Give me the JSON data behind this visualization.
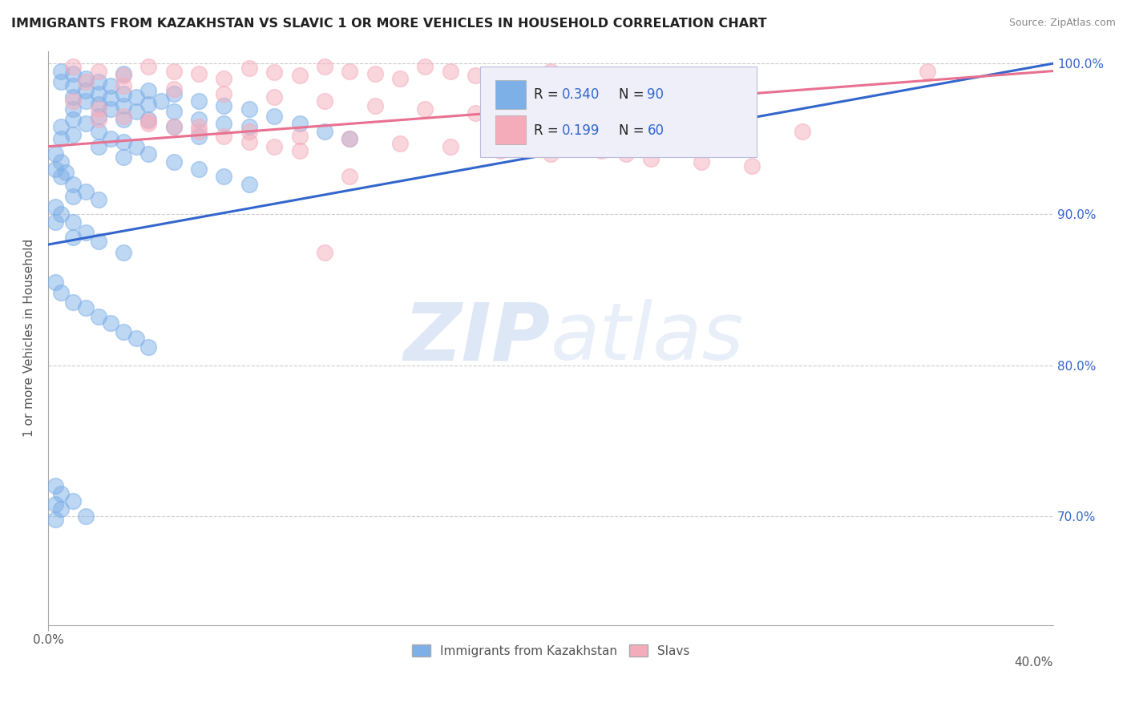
{
  "title": "IMMIGRANTS FROM KAZAKHSTAN VS SLAVIC 1 OR MORE VEHICLES IN HOUSEHOLD CORRELATION CHART",
  "source": "Source: ZipAtlas.com",
  "ylabel": "1 or more Vehicles in Household",
  "xlim": [
    0.0,
    0.04
  ],
  "ylim": [
    0.628,
    1.008
  ],
  "xtick_vals": [
    0.0,
    0.005,
    0.01,
    0.015,
    0.02,
    0.025,
    0.03,
    0.035,
    0.04
  ],
  "xtick_labels": [
    "0.0%",
    "",
    "",
    "",
    "",
    "",
    "",
    "",
    ""
  ],
  "ytick_vals": [
    0.7,
    0.8,
    0.9,
    1.0
  ],
  "ytick_labels": [
    "70.0%",
    "80.0%",
    "90.0%",
    "100.0%"
  ],
  "color_blue": "#7EB0E8",
  "color_pink": "#F4ACBB",
  "color_blue_dark": "#7EB0E8",
  "color_pink_dark": "#F4ACBB",
  "color_blue_line": "#3366CC",
  "color_pink_line": "#E87090",
  "blue_scatter_x": [
    0.0005,
    0.0005,
    0.001,
    0.001,
    0.001,
    0.001,
    0.0015,
    0.0015,
    0.0015,
    0.002,
    0.002,
    0.002,
    0.002,
    0.0025,
    0.0025,
    0.0025,
    0.003,
    0.003,
    0.003,
    0.003,
    0.0035,
    0.0035,
    0.004,
    0.004,
    0.004,
    0.0045,
    0.005,
    0.005,
    0.005,
    0.006,
    0.006,
    0.006,
    0.007,
    0.007,
    0.008,
    0.008,
    0.009,
    0.01,
    0.011,
    0.012,
    0.0005,
    0.0005,
    0.001,
    0.001,
    0.0015,
    0.002,
    0.002,
    0.0025,
    0.003,
    0.003,
    0.0035,
    0.004,
    0.005,
    0.006,
    0.007,
    0.008,
    0.0003,
    0.0003,
    0.0005,
    0.0005,
    0.0007,
    0.001,
    0.001,
    0.0015,
    0.002,
    0.0003,
    0.0003,
    0.0005,
    0.001,
    0.001,
    0.0015,
    0.002,
    0.003,
    0.0003,
    0.0005,
    0.001,
    0.0015,
    0.002,
    0.0025,
    0.003,
    0.0035,
    0.004,
    0.0003,
    0.0003,
    0.0003,
    0.0005,
    0.0005,
    0.001,
    0.0015
  ],
  "blue_scatter_y": [
    0.995,
    0.988,
    0.993,
    0.985,
    0.978,
    0.97,
    0.99,
    0.982,
    0.975,
    0.988,
    0.98,
    0.973,
    0.965,
    0.985,
    0.977,
    0.97,
    0.993,
    0.98,
    0.972,
    0.963,
    0.978,
    0.968,
    0.982,
    0.973,
    0.963,
    0.975,
    0.98,
    0.968,
    0.958,
    0.975,
    0.963,
    0.952,
    0.972,
    0.96,
    0.97,
    0.958,
    0.965,
    0.96,
    0.955,
    0.95,
    0.958,
    0.95,
    0.963,
    0.953,
    0.96,
    0.955,
    0.945,
    0.95,
    0.948,
    0.938,
    0.945,
    0.94,
    0.935,
    0.93,
    0.925,
    0.92,
    0.94,
    0.93,
    0.935,
    0.925,
    0.928,
    0.92,
    0.912,
    0.915,
    0.91,
    0.905,
    0.895,
    0.9,
    0.895,
    0.885,
    0.888,
    0.882,
    0.875,
    0.855,
    0.848,
    0.842,
    0.838,
    0.832,
    0.828,
    0.822,
    0.818,
    0.812,
    0.72,
    0.708,
    0.698,
    0.715,
    0.705,
    0.71,
    0.7
  ],
  "pink_scatter_x": [
    0.001,
    0.002,
    0.003,
    0.004,
    0.005,
    0.006,
    0.007,
    0.008,
    0.009,
    0.01,
    0.011,
    0.012,
    0.013,
    0.014,
    0.015,
    0.016,
    0.017,
    0.018,
    0.019,
    0.02,
    0.0015,
    0.003,
    0.005,
    0.007,
    0.009,
    0.011,
    0.013,
    0.015,
    0.017,
    0.019,
    0.002,
    0.004,
    0.006,
    0.008,
    0.01,
    0.012,
    0.014,
    0.016,
    0.018,
    0.02,
    0.025,
    0.03,
    0.035,
    0.021,
    0.022,
    0.023,
    0.024,
    0.026,
    0.028,
    0.001,
    0.002,
    0.003,
    0.004,
    0.005,
    0.006,
    0.007,
    0.008,
    0.009,
    0.01,
    0.011,
    0.012
  ],
  "pink_scatter_y": [
    0.998,
    0.995,
    0.992,
    0.998,
    0.995,
    0.993,
    0.99,
    0.997,
    0.994,
    0.992,
    0.998,
    0.995,
    0.993,
    0.99,
    0.998,
    0.995,
    0.992,
    0.99,
    0.987,
    0.995,
    0.988,
    0.985,
    0.983,
    0.98,
    0.978,
    0.975,
    0.972,
    0.97,
    0.967,
    0.965,
    0.963,
    0.96,
    0.958,
    0.955,
    0.952,
    0.95,
    0.947,
    0.945,
    0.942,
    0.94,
    0.96,
    0.955,
    0.995,
    0.945,
    0.942,
    0.94,
    0.937,
    0.935,
    0.932,
    0.975,
    0.97,
    0.965,
    0.962,
    0.958,
    0.955,
    0.952,
    0.948,
    0.945,
    0.942,
    0.875,
    0.925
  ],
  "blue_line_x": [
    0.0,
    0.04
  ],
  "blue_line_y": [
    0.88,
    1.0
  ],
  "pink_line_x": [
    0.0,
    0.04
  ],
  "pink_line_y": [
    0.945,
    0.995
  ],
  "legend_r1_label": "R = ",
  "legend_r1_val": "0.340",
  "legend_n1_label": "  N = ",
  "legend_n1_val": "90",
  "legend_r2_label": "R =  ",
  "legend_r2_val": "0.199",
  "legend_n2_label": "  N = ",
  "legend_n2_val": "60"
}
